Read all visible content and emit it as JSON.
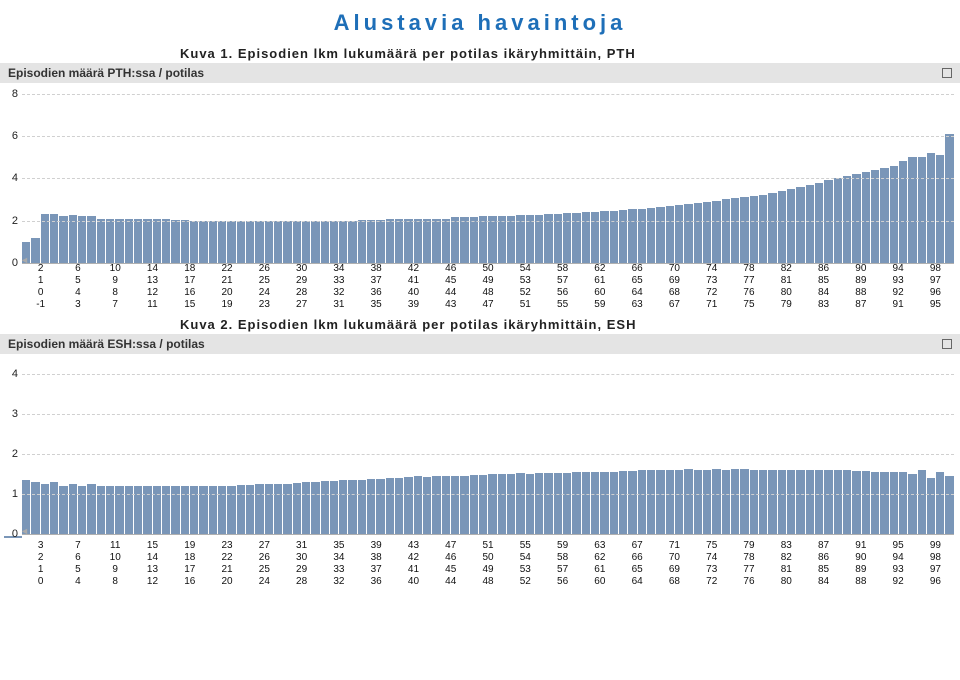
{
  "page_title": "Alustavia havaintoja",
  "chart1": {
    "caption": "Kuva 1. Episodien lkm lukumäärä per potilas ikäryhmittäin, PTH",
    "header": "Episodien määrä PTH:ssa / potilas",
    "type": "bar",
    "bar_color": "#7a96b8",
    "grid_color": "#d0d0d0",
    "background_color": "#ffffff",
    "ymin": 0,
    "ymax": 8.5,
    "yticks": [
      0,
      2,
      4,
      6,
      8
    ],
    "x_start": -1,
    "x_end": 98,
    "values": [
      1.0,
      1.2,
      2.3,
      2.3,
      2.2,
      2.25,
      2.2,
      2.2,
      2.1,
      2.1,
      2.1,
      2.1,
      2.1,
      2.1,
      2.1,
      2.1,
      2.05,
      2.05,
      2.0,
      2.0,
      2.0,
      2.0,
      2.0,
      2.0,
      2.0,
      2.0,
      2.0,
      2.0,
      2.0,
      2.0,
      2.0,
      2.0,
      2.0,
      2.0,
      2.0,
      2.0,
      2.05,
      2.05,
      2.05,
      2.1,
      2.1,
      2.1,
      2.1,
      2.1,
      2.1,
      2.1,
      2.15,
      2.15,
      2.15,
      2.2,
      2.2,
      2.2,
      2.2,
      2.25,
      2.25,
      2.25,
      2.3,
      2.3,
      2.35,
      2.35,
      2.4,
      2.4,
      2.45,
      2.45,
      2.5,
      2.55,
      2.55,
      2.6,
      2.65,
      2.7,
      2.75,
      2.8,
      2.85,
      2.9,
      2.95,
      3.0,
      3.05,
      3.1,
      3.15,
      3.2,
      3.3,
      3.4,
      3.5,
      3.6,
      3.7,
      3.8,
      3.9,
      4.0,
      4.1,
      4.2,
      4.3,
      4.4,
      4.5,
      4.6,
      4.8,
      5.0,
      5.0,
      5.2,
      5.1,
      6.1
    ],
    "xaxis_rows": [
      [
        2,
        6,
        10,
        14,
        18,
        22,
        26,
        30,
        34,
        38,
        42,
        46,
        50,
        54,
        58,
        62,
        66,
        70,
        74,
        78,
        82,
        86,
        90,
        94,
        98
      ],
      [
        1,
        5,
        9,
        13,
        17,
        21,
        25,
        29,
        33,
        37,
        41,
        45,
        49,
        53,
        57,
        61,
        65,
        69,
        73,
        77,
        81,
        85,
        89,
        93,
        97
      ],
      [
        0,
        4,
        8,
        12,
        16,
        20,
        24,
        28,
        32,
        36,
        40,
        44,
        48,
        52,
        56,
        60,
        64,
        68,
        72,
        76,
        80,
        84,
        88,
        92,
        96
      ],
      [
        -1,
        3,
        7,
        11,
        15,
        19,
        23,
        27,
        31,
        35,
        39,
        43,
        47,
        51,
        55,
        59,
        63,
        67,
        71,
        75,
        79,
        83,
        87,
        91,
        95
      ]
    ]
  },
  "chart2": {
    "caption": "Kuva 2. Episodien lkm lukumäärä per potilas ikäryhmittäin, ESH",
    "header": "Episodien määrä ESH:ssa / potilas",
    "type": "bar",
    "bar_color": "#7a96b8",
    "grid_color": "#d0d0d0",
    "background_color": "#ffffff",
    "ymin": 0,
    "ymax": 4.5,
    "yticks": [
      0,
      1,
      2,
      3,
      4
    ],
    "x_start": 0,
    "x_end": 99,
    "values": [
      1.35,
      1.3,
      1.25,
      1.3,
      1.2,
      1.25,
      1.2,
      1.25,
      1.2,
      1.2,
      1.2,
      1.2,
      1.2,
      1.2,
      1.2,
      1.2,
      1.2,
      1.2,
      1.2,
      1.2,
      1.2,
      1.2,
      1.2,
      1.22,
      1.22,
      1.24,
      1.25,
      1.25,
      1.26,
      1.28,
      1.3,
      1.3,
      1.32,
      1.33,
      1.34,
      1.35,
      1.36,
      1.37,
      1.38,
      1.4,
      1.4,
      1.42,
      1.45,
      1.42,
      1.45,
      1.45,
      1.45,
      1.45,
      1.48,
      1.48,
      1.5,
      1.5,
      1.5,
      1.52,
      1.5,
      1.52,
      1.52,
      1.52,
      1.53,
      1.55,
      1.55,
      1.55,
      1.55,
      1.55,
      1.58,
      1.58,
      1.6,
      1.6,
      1.6,
      1.6,
      1.6,
      1.62,
      1.6,
      1.6,
      1.62,
      1.6,
      1.62,
      1.62,
      1.6,
      1.6,
      1.6,
      1.6,
      1.6,
      1.6,
      1.6,
      1.6,
      1.6,
      1.6,
      1.6,
      1.58,
      1.58,
      1.55,
      1.55,
      1.55,
      1.55,
      1.5,
      1.6,
      1.4,
      1.55,
      1.45
    ],
    "xaxis_rows": [
      [
        3,
        7,
        11,
        15,
        19,
        23,
        27,
        31,
        35,
        39,
        43,
        47,
        51,
        55,
        59,
        63,
        67,
        71,
        75,
        79,
        83,
        87,
        91,
        95,
        99
      ],
      [
        2,
        6,
        10,
        14,
        18,
        22,
        26,
        30,
        34,
        38,
        42,
        46,
        50,
        54,
        58,
        62,
        66,
        70,
        74,
        78,
        82,
        86,
        90,
        94,
        98
      ],
      [
        1,
        5,
        9,
        13,
        17,
        21,
        25,
        29,
        33,
        37,
        41,
        45,
        49,
        53,
        57,
        61,
        65,
        69,
        73,
        77,
        81,
        85,
        89,
        93,
        97
      ],
      [
        0,
        4,
        8,
        12,
        16,
        20,
        24,
        28,
        32,
        36,
        40,
        44,
        48,
        52,
        56,
        60,
        64,
        68,
        72,
        76,
        80,
        84,
        88,
        92,
        96
      ]
    ]
  }
}
